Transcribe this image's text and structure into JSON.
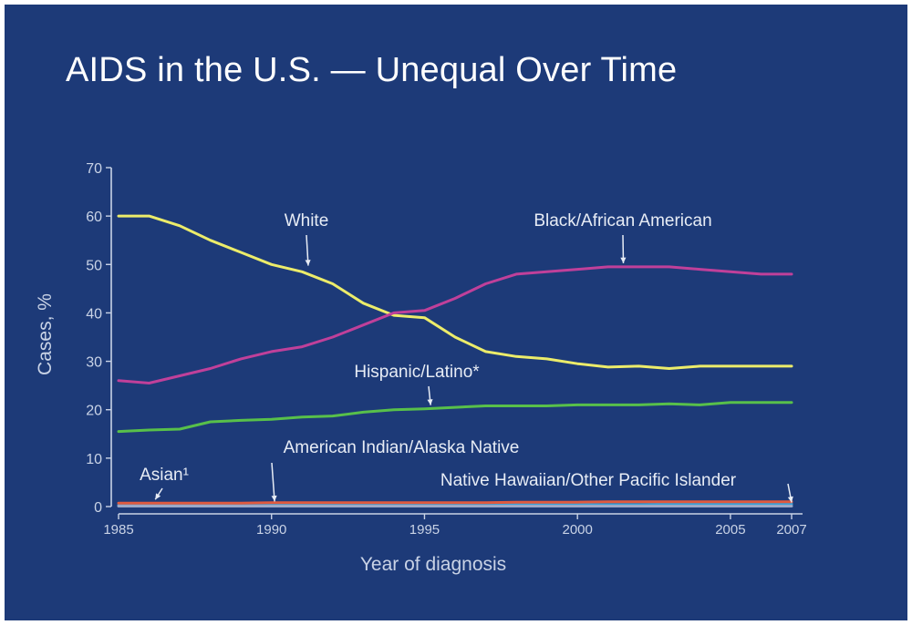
{
  "title": "AIDS in the U.S. — Unequal Over Time",
  "colors": {
    "background": "#1d3a78",
    "axis": "#c9d3e6",
    "white_series": "#ecec6a",
    "black_series": "#c0409a",
    "hispanic_series": "#58c04a",
    "aian_series": "#3aa0d8",
    "asian_series": "#e05a40",
    "nhopi_series": "#9aa8c8"
  },
  "chart_data": {
    "type": "line",
    "xlabel": "Year of diagnosis",
    "ylabel": "Cases, %",
    "xlim": [
      1985,
      2007
    ],
    "ylim": [
      0,
      70
    ],
    "x_ticks": [
      1985,
      1990,
      1995,
      2000,
      2005,
      2007
    ],
    "y_ticks": [
      0,
      10,
      20,
      30,
      40,
      50,
      60,
      70
    ],
    "grid": false,
    "x": [
      1985,
      1986,
      1987,
      1988,
      1989,
      1990,
      1991,
      1992,
      1993,
      1994,
      1995,
      1996,
      1997,
      1998,
      1999,
      2000,
      2001,
      2002,
      2003,
      2004,
      2005,
      2006,
      2007
    ],
    "series": [
      {
        "name": "White",
        "color": "#ecec6a",
        "values": [
          60,
          60,
          58,
          55,
          52.5,
          50,
          48.5,
          46,
          42,
          39.5,
          39,
          35,
          32,
          31,
          30.5,
          29.5,
          28.8,
          29,
          28.5,
          29,
          29,
          29,
          29
        ]
      },
      {
        "name": "Black/African American",
        "color": "#c0409a",
        "values": [
          26,
          25.5,
          27,
          28.5,
          30.5,
          32,
          33,
          35,
          37.5,
          40,
          40.5,
          43,
          46,
          48,
          48.5,
          49,
          49.5,
          49.5,
          49.5,
          49,
          48.5,
          48,
          48
        ]
      },
      {
        "name": "Hispanic/Latino*",
        "color": "#58c04a",
        "values": [
          15.5,
          15.8,
          16,
          17.5,
          17.8,
          18,
          18.5,
          18.7,
          19.5,
          20,
          20.2,
          20.5,
          20.8,
          20.8,
          20.8,
          21,
          21,
          21,
          21.2,
          21,
          21.5,
          21.5,
          21.5
        ]
      },
      {
        "name": "American Indian/Alaska Native",
        "color": "#3aa0d8",
        "values": [
          0.3,
          0.3,
          0.3,
          0.3,
          0.3,
          0.3,
          0.3,
          0.3,
          0.3,
          0.3,
          0.3,
          0.3,
          0.4,
          0.4,
          0.4,
          0.4,
          0.4,
          0.4,
          0.5,
          0.5,
          0.5,
          0.5,
          0.5
        ]
      },
      {
        "name": "Asian",
        "color": "#e05a40",
        "values": [
          0.7,
          0.7,
          0.7,
          0.7,
          0.7,
          0.8,
          0.8,
          0.8,
          0.8,
          0.8,
          0.8,
          0.8,
          0.8,
          0.9,
          0.9,
          0.9,
          1.0,
          1.0,
          1.0,
          1.0,
          1.0,
          1.0,
          1.0
        ]
      },
      {
        "name": "Native Hawaiian/Other Pacific Islander",
        "color": "#9aa8c8",
        "values": [
          0.1,
          0.1,
          0.1,
          0.1,
          0.1,
          0.1,
          0.1,
          0.1,
          0.1,
          0.1,
          0.1,
          0.1,
          0.1,
          0.1,
          0.1,
          0.1,
          0.1,
          0.1,
          0.1,
          0.1,
          0.1,
          0.1,
          0.1
        ]
      }
    ],
    "annotations": [
      {
        "label": "White",
        "x": 1991.2,
        "y": 49
      },
      {
        "label": "Black/African American",
        "x": 2001.5,
        "y": 49.5
      },
      {
        "label": "Hispanic/Latino*",
        "x": 1995.2,
        "y": 20.2
      },
      {
        "label": "American Indian/Alaska Native",
        "x": 1990.1,
        "y": 0.3
      },
      {
        "label": "Asian¹",
        "x": 1986.2,
        "y": 0.7
      },
      {
        "label": "Native Hawaiian/Other Pacific Islander",
        "x": 2007,
        "y": 0.1
      }
    ]
  }
}
